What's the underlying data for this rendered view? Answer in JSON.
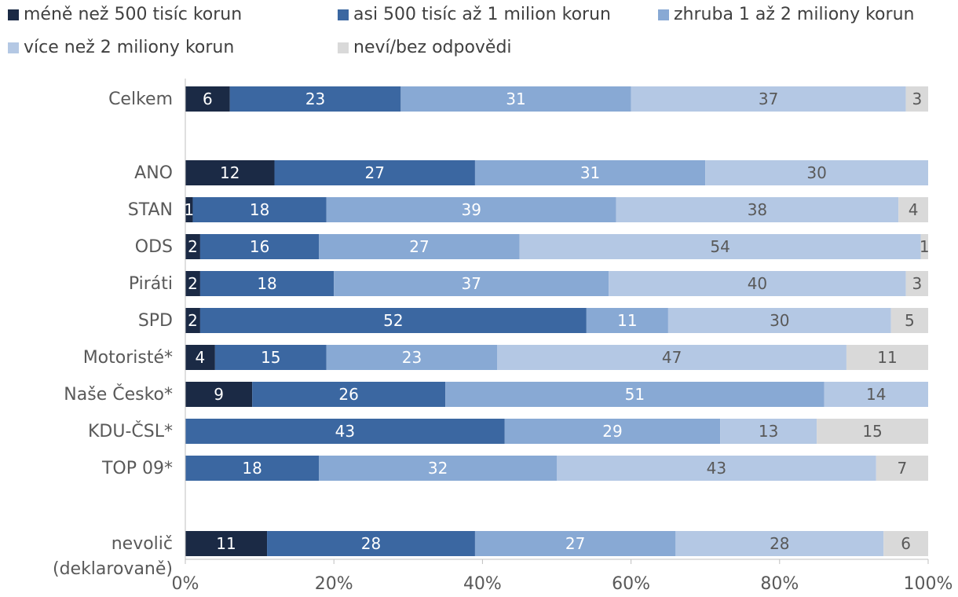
{
  "chart_data": {
    "type": "bar",
    "orientation": "horizontal",
    "stacked": "percent",
    "categories": [
      "Celkem",
      "ANO",
      "STAN",
      "ODS",
      "Piráti",
      "SPD",
      "Motoristé*",
      "Naše Česko*",
      "KDU-ČSL*",
      "TOP 09*",
      "nevolič (deklarovaně)"
    ],
    "series": [
      {
        "name": "méně než 500 tisíc korun",
        "color": "#1b2a45",
        "values": [
          6,
          12,
          1,
          2,
          2,
          2,
          4,
          9,
          0,
          0,
          11
        ]
      },
      {
        "name": "asi 500 tisíc až 1 milion korun",
        "color": "#3b67a1",
        "values": [
          23,
          27,
          18,
          16,
          18,
          52,
          15,
          26,
          43,
          18,
          28
        ]
      },
      {
        "name": "zhruba 1 až 2 miliony korun",
        "color": "#88a9d4",
        "values": [
          31,
          31,
          39,
          27,
          37,
          11,
          23,
          51,
          29,
          32,
          27
        ]
      },
      {
        "name": "více než 2 miliony korun",
        "color": "#b4c8e4",
        "values": [
          37,
          30,
          38,
          54,
          40,
          30,
          47,
          14,
          13,
          43,
          28
        ]
      },
      {
        "name": "neví/bez odpovědi",
        "color": "#d9d9d9",
        "values": [
          3,
          0,
          4,
          1,
          3,
          5,
          11,
          0,
          15,
          7,
          6
        ]
      }
    ],
    "xlim": [
      0,
      100
    ],
    "x_ticks": [
      "0%",
      "20%",
      "40%",
      "60%",
      "80%",
      "100%"
    ],
    "legend_position": "top",
    "grid": false
  }
}
